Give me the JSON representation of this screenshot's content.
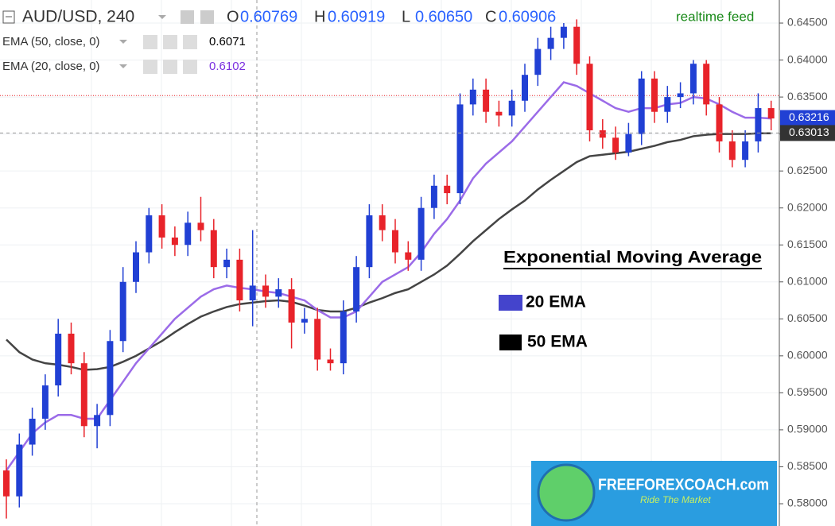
{
  "chart_data": {
    "type": "candlestick",
    "symbol": "AUD/USD, 240",
    "ohlc": [
      {
        "label": "O",
        "value": "0.60769"
      },
      {
        "label": "H",
        "value": "0.60919"
      },
      {
        "label": "L",
        "value": "0.60650"
      },
      {
        "label": "C",
        "value": "0.60906"
      }
    ],
    "feed": "realtime feed",
    "open": [
      0.5845,
      0.581,
      0.588,
      0.5915,
      0.596,
      0.603,
      0.599,
      0.5905,
      0.592,
      0.602,
      0.61,
      0.614,
      0.619,
      0.616,
      0.615,
      0.618,
      0.617,
      0.612,
      0.613,
      0.6075,
      0.6095,
      0.608,
      0.609,
      0.6045,
      0.605,
      0.5995,
      0.599,
      0.606,
      0.612,
      0.619,
      0.617,
      0.614,
      0.613,
      0.62,
      0.623,
      0.622,
      0.634,
      0.636,
      0.633,
      0.6325,
      0.6345,
      0.638,
      0.6415,
      0.643,
      0.6445,
      0.6395,
      0.6305,
      0.6295,
      0.6275,
      0.63,
      0.6375,
      0.633,
      0.635,
      0.6355,
      0.6395,
      0.634,
      0.629,
      0.6265,
      0.629,
      0.6335
    ],
    "high": [
      0.586,
      0.5895,
      0.593,
      0.5975,
      0.605,
      0.6045,
      0.6005,
      0.5935,
      0.6035,
      0.612,
      0.6155,
      0.62,
      0.6205,
      0.6175,
      0.6195,
      0.6215,
      0.6185,
      0.6145,
      0.6145,
      0.617,
      0.611,
      0.6105,
      0.6105,
      0.6065,
      0.6065,
      0.601,
      0.6075,
      0.6135,
      0.6205,
      0.6205,
      0.6185,
      0.6155,
      0.6215,
      0.6245,
      0.6245,
      0.6355,
      0.6375,
      0.6375,
      0.6345,
      0.636,
      0.6395,
      0.643,
      0.6445,
      0.645,
      0.6455,
      0.6405,
      0.632,
      0.631,
      0.6315,
      0.6385,
      0.6385,
      0.6365,
      0.637,
      0.64,
      0.64,
      0.635,
      0.6305,
      0.6305,
      0.6355,
      0.6345
    ],
    "low": [
      0.578,
      0.5795,
      0.5865,
      0.59,
      0.5945,
      0.5975,
      0.589,
      0.5875,
      0.5905,
      0.6005,
      0.6085,
      0.6125,
      0.6145,
      0.6135,
      0.6135,
      0.6155,
      0.6105,
      0.6105,
      0.606,
      0.604,
      0.6065,
      0.6065,
      0.601,
      0.603,
      0.598,
      0.598,
      0.5975,
      0.6045,
      0.6105,
      0.6155,
      0.6125,
      0.6115,
      0.6115,
      0.6185,
      0.6205,
      0.6205,
      0.6325,
      0.6315,
      0.631,
      0.631,
      0.633,
      0.6365,
      0.64,
      0.6415,
      0.638,
      0.629,
      0.628,
      0.6265,
      0.627,
      0.6285,
      0.6315,
      0.6315,
      0.6335,
      0.634,
      0.6325,
      0.6275,
      0.6255,
      0.6255,
      0.6275,
      0.6305
    ],
    "close": [
      0.581,
      0.588,
      0.5915,
      0.596,
      0.603,
      0.599,
      0.5905,
      0.592,
      0.602,
      0.61,
      0.614,
      0.619,
      0.616,
      0.615,
      0.618,
      0.617,
      0.612,
      0.613,
      0.6075,
      0.6095,
      0.608,
      0.609,
      0.6045,
      0.605,
      0.5995,
      0.599,
      0.606,
      0.612,
      0.619,
      0.617,
      0.614,
      0.613,
      0.62,
      0.623,
      0.622,
      0.634,
      0.636,
      0.633,
      0.6325,
      0.6345,
      0.638,
      0.6415,
      0.643,
      0.6445,
      0.6395,
      0.6305,
      0.6295,
      0.6275,
      0.63,
      0.6375,
      0.633,
      0.635,
      0.6355,
      0.6395,
      0.634,
      0.629,
      0.6265,
      0.629,
      0.6335,
      0.6321
    ],
    "up_color": "#2140d4",
    "down_color": "#e8232a",
    "series": [
      {
        "name": "EMA (50, close, 0)",
        "last": "0.6071",
        "legend": "50 EMA",
        "color": "#444444",
        "legend_color": "#000000",
        "last_color": "#000000",
        "values": [
          0.6022,
          0.6005,
          0.5995,
          0.599,
          0.5988,
          0.5985,
          0.5981,
          0.5982,
          0.5985,
          0.5992,
          0.6,
          0.601,
          0.602,
          0.6032,
          0.6043,
          0.6053,
          0.606,
          0.6066,
          0.607,
          0.6072,
          0.6074,
          0.6075,
          0.6073,
          0.6068,
          0.6062,
          0.606,
          0.606,
          0.6065,
          0.6072,
          0.6078,
          0.6085,
          0.609,
          0.61,
          0.611,
          0.6122,
          0.6138,
          0.6155,
          0.617,
          0.6185,
          0.6198,
          0.621,
          0.6225,
          0.6238,
          0.625,
          0.6262,
          0.627,
          0.6272,
          0.6274,
          0.6276,
          0.628,
          0.6284,
          0.6289,
          0.6292,
          0.6297,
          0.6299,
          0.63,
          0.63,
          0.63,
          0.6301,
          0.6301
        ]
      },
      {
        "name": "EMA (20, close, 0)",
        "last": "0.6102",
        "legend": "20 EMA",
        "color": "#9b6be8",
        "legend_color": "#4444cc",
        "last_color": "#7b2fe0",
        "values": [
          0.5845,
          0.587,
          0.5895,
          0.591,
          0.592,
          0.592,
          0.5915,
          0.5915,
          0.594,
          0.5965,
          0.599,
          0.601,
          0.603,
          0.605,
          0.6065,
          0.608,
          0.609,
          0.6095,
          0.6092,
          0.609,
          0.6087,
          0.6085,
          0.608,
          0.6075,
          0.6062,
          0.6052,
          0.6052,
          0.606,
          0.608,
          0.61,
          0.611,
          0.612,
          0.614,
          0.6165,
          0.6185,
          0.621,
          0.624,
          0.626,
          0.6275,
          0.629,
          0.631,
          0.633,
          0.635,
          0.637,
          0.6365,
          0.6355,
          0.6345,
          0.6335,
          0.633,
          0.6335,
          0.6335,
          0.634,
          0.6342,
          0.635,
          0.6348,
          0.634,
          0.633,
          0.6322,
          0.6322,
          0.6321
        ]
      }
    ],
    "annotation_title": "Exponential Moving Average",
    "ylim": [
      0.57699,
      0.64812
    ],
    "yticks": [
      {
        "value": 0.58,
        "label": "0.58000"
      },
      {
        "value": 0.585,
        "label": "0.58500"
      },
      {
        "value": 0.59,
        "label": "0.59000"
      },
      {
        "value": 0.595,
        "label": "0.59500"
      },
      {
        "value": 0.6,
        "label": "0.60000"
      },
      {
        "value": 0.605,
        "label": "0.60500"
      },
      {
        "value": 0.61,
        "label": "0.61000"
      },
      {
        "value": 0.615,
        "label": "0.61500"
      },
      {
        "value": 0.62,
        "label": "0.62000"
      },
      {
        "value": 0.625,
        "label": "0.62500"
      },
      {
        "value": 0.63,
        "label": "0.63000"
      },
      {
        "value": 0.635,
        "label": "0.63500"
      },
      {
        "value": 0.64,
        "label": "0.64000"
      },
      {
        "value": 0.645,
        "label": "0.64500"
      }
    ],
    "grid": true,
    "hline": {
      "value": 0.6352,
      "color": "#e8232a"
    },
    "price_tags": [
      {
        "value": 0.63216,
        "label": "0.63216",
        "color": "#2140d4"
      },
      {
        "value": 0.63013,
        "label": "0.63013",
        "color": "#333333"
      }
    ],
    "watermark": {
      "title": "FREEFOREXCOACH.com",
      "subtitle": "Ride The Market"
    }
  }
}
